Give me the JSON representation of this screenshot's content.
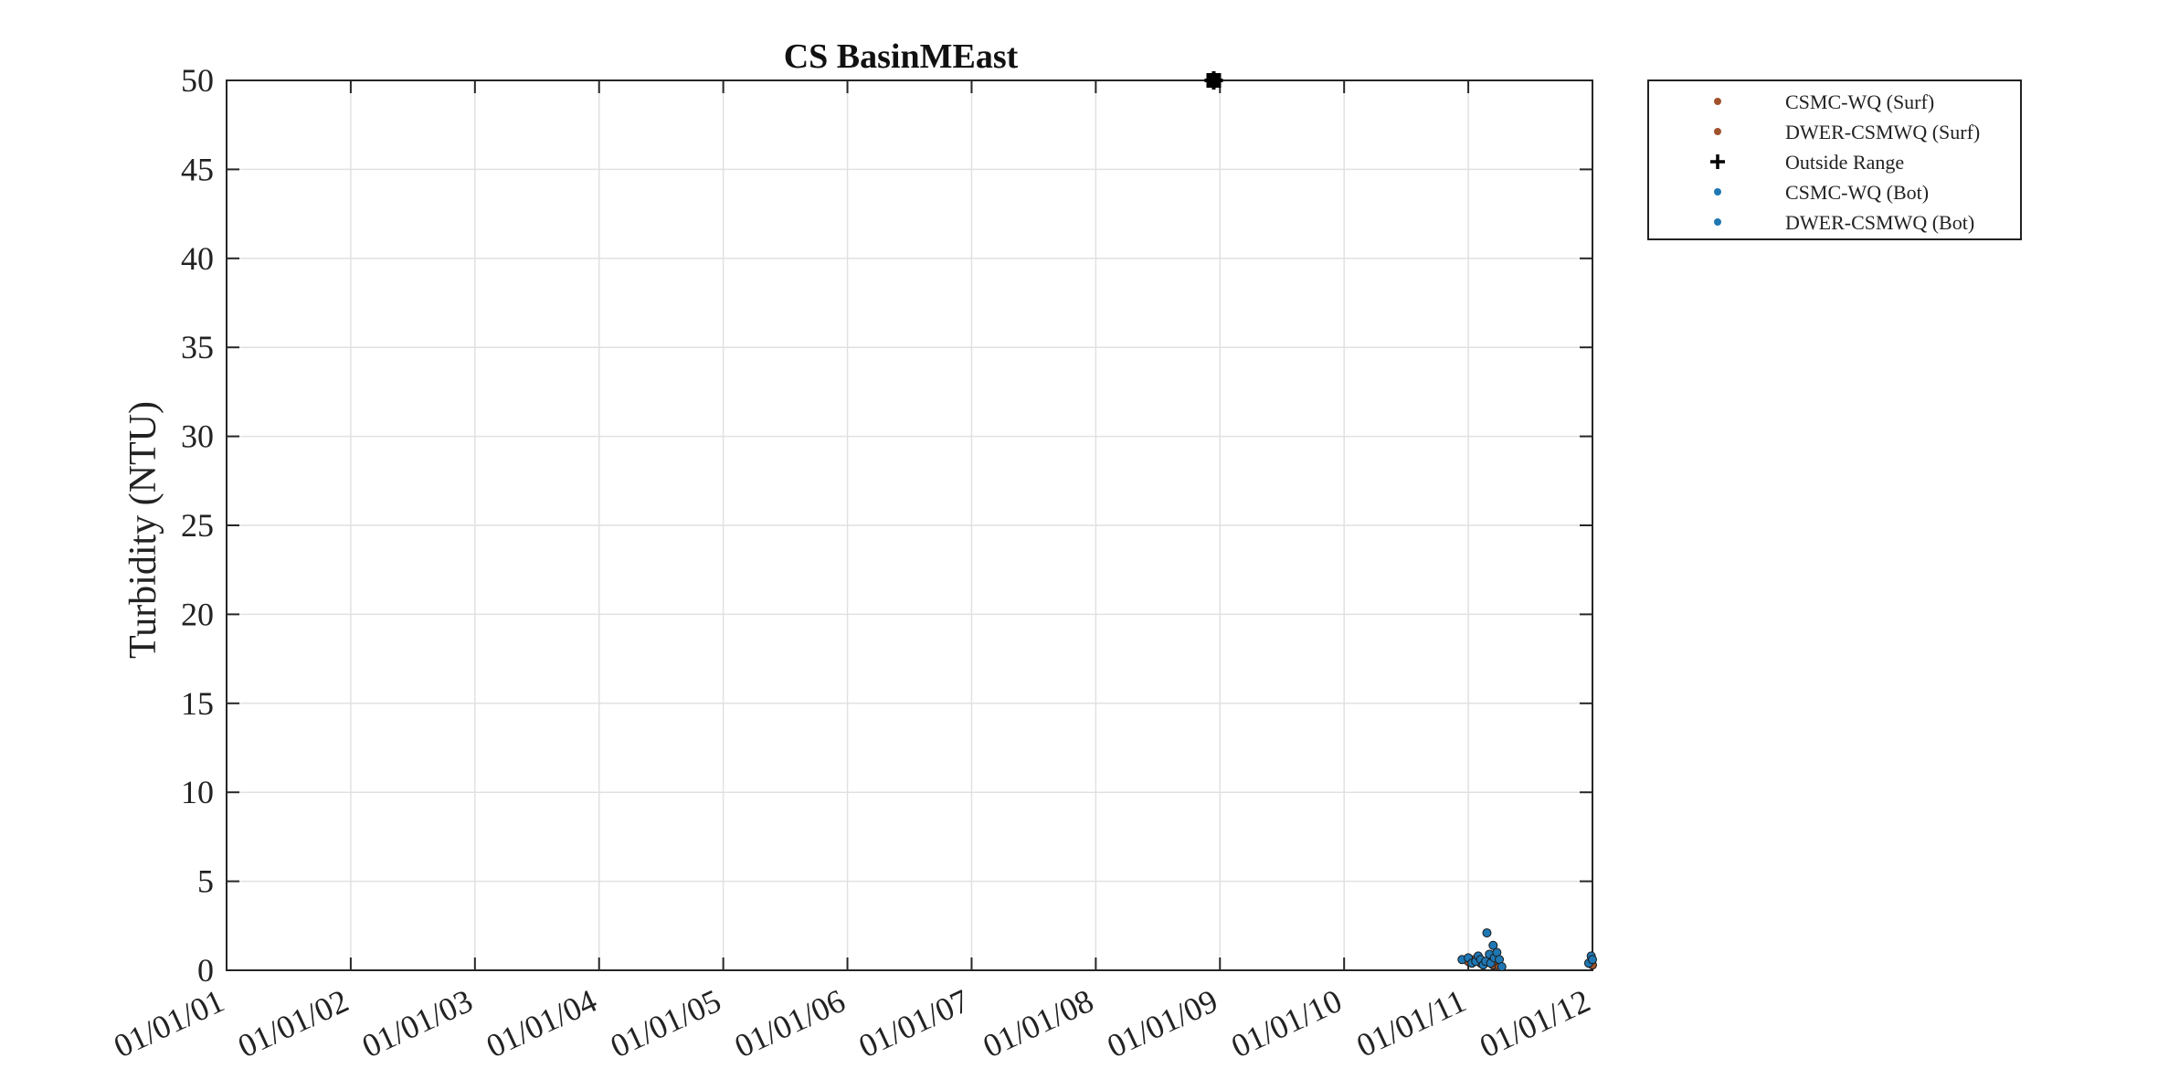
{
  "chart_data": {
    "type": "scatter",
    "title": "CS BasinMEast",
    "ylabel": "Turbidity (NTU)",
    "xlabel": "",
    "xlim": [
      2001,
      2012
    ],
    "ylim": [
      0,
      50
    ],
    "grid": true,
    "x_ticks": [
      2001,
      2002,
      2003,
      2004,
      2005,
      2006,
      2007,
      2008,
      2009,
      2010,
      2011,
      2012
    ],
    "x_tick_labels": [
      "01/01/01",
      "01/01/02",
      "01/01/03",
      "01/01/04",
      "01/01/05",
      "01/01/06",
      "01/01/07",
      "01/01/08",
      "01/01/09",
      "01/01/10",
      "01/01/11",
      "01/01/12"
    ],
    "y_ticks": [
      0,
      5,
      10,
      15,
      20,
      25,
      30,
      35,
      40,
      45,
      50
    ],
    "y_tick_labels": [
      "0",
      "5",
      "10",
      "15",
      "20",
      "25",
      "30",
      "35",
      "40",
      "45",
      "50"
    ],
    "legend_position": "outside-top-right",
    "series": [
      {
        "name": "CSMC-WQ (Surf)",
        "marker": "dot",
        "color": "#a0522d",
        "points": [
          {
            "x": 2011.0,
            "y": 0.5
          },
          {
            "x": 2011.05,
            "y": 0.6
          },
          {
            "x": 2011.1,
            "y": 0.4
          },
          {
            "x": 2011.15,
            "y": 0.5
          },
          {
            "x": 2011.2,
            "y": 0.3
          },
          {
            "x": 2011.25,
            "y": 0.2
          }
        ]
      },
      {
        "name": "DWER-CSMWQ (Surf)",
        "marker": "dot",
        "color": "#a0522d",
        "points": [
          {
            "x": 2011.99,
            "y": 0.5
          },
          {
            "x": 2012.0,
            "y": 0.3
          }
        ]
      },
      {
        "name": "Outside Range",
        "marker": "plus",
        "color": "#000000",
        "points": [
          {
            "x": 2008.95,
            "y": 50.0
          }
        ]
      },
      {
        "name": "CSMC-WQ (Bot)",
        "marker": "dot",
        "color": "#1f77b4",
        "points": [
          {
            "x": 2010.95,
            "y": 0.6
          },
          {
            "x": 2011.0,
            "y": 0.7
          },
          {
            "x": 2011.03,
            "y": 0.4
          },
          {
            "x": 2011.06,
            "y": 0.5
          },
          {
            "x": 2011.08,
            "y": 0.8
          },
          {
            "x": 2011.1,
            "y": 0.6
          },
          {
            "x": 2011.12,
            "y": 0.3
          },
          {
            "x": 2011.14,
            "y": 0.5
          },
          {
            "x": 2011.15,
            "y": 2.1
          },
          {
            "x": 2011.17,
            "y": 0.9
          },
          {
            "x": 2011.18,
            "y": 0.4
          },
          {
            "x": 2011.2,
            "y": 1.4
          },
          {
            "x": 2011.21,
            "y": 0.7
          },
          {
            "x": 2011.23,
            "y": 1.0
          },
          {
            "x": 2011.25,
            "y": 0.6
          },
          {
            "x": 2011.27,
            "y": 0.2
          }
        ]
      },
      {
        "name": "DWER-CSMWQ (Bot)",
        "marker": "dot",
        "color": "#1f77b4",
        "points": [
          {
            "x": 2011.97,
            "y": 0.4
          },
          {
            "x": 2011.99,
            "y": 0.8
          },
          {
            "x": 2012.0,
            "y": 0.6
          }
        ]
      }
    ]
  }
}
